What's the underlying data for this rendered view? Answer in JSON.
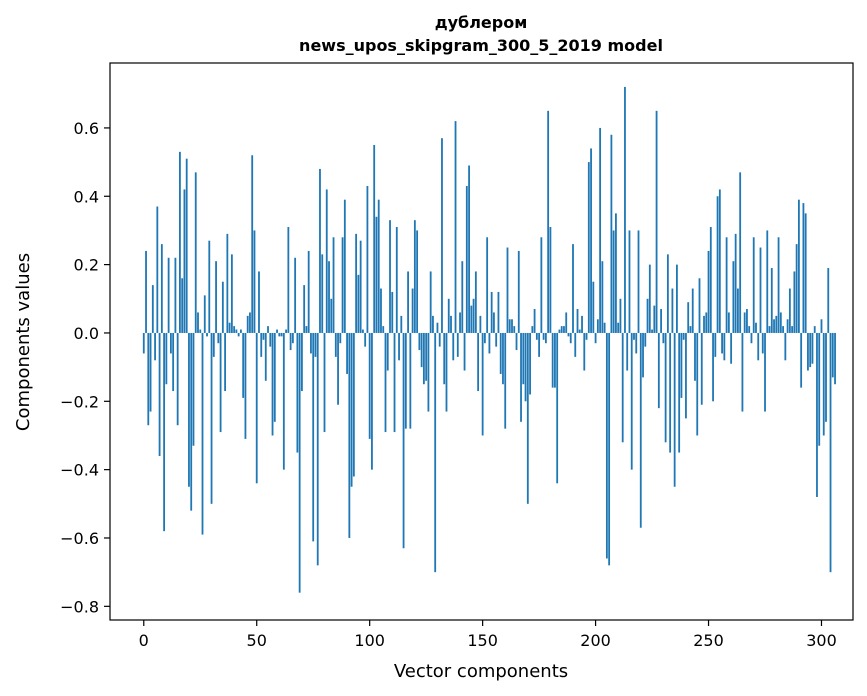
{
  "chart_data": {
    "type": "bar",
    "title_line1": "дублером",
    "title_line2": "news_upos_skipgram_300_5_2019 model",
    "xlabel": "Vector components",
    "ylabel": "Components values",
    "xlim": [
      -14.95,
      313.95
    ],
    "ylim": [
      -0.84,
      0.79
    ],
    "xticks": [
      0,
      50,
      100,
      150,
      200,
      250,
      300
    ],
    "xtick_labels": [
      "0",
      "50",
      "100",
      "150",
      "200",
      "250",
      "300"
    ],
    "yticks": [
      -0.8,
      -0.6,
      -0.4,
      -0.2,
      0.0,
      0.2,
      0.4,
      0.6
    ],
    "ytick_labels": [
      "−0.8",
      "−0.6",
      "−0.4",
      "−0.2",
      "0.0",
      "0.2",
      "0.4",
      "0.6"
    ],
    "bar_color": "#1f77b4",
    "grid": false,
    "values": [
      -0.06,
      0.24,
      -0.27,
      -0.23,
      0.14,
      -0.08,
      0.37,
      -0.36,
      0.26,
      -0.58,
      -0.15,
      0.22,
      -0.06,
      -0.17,
      0.22,
      -0.27,
      0.53,
      0.16,
      0.42,
      0.51,
      -0.45,
      -0.52,
      -0.33,
      0.47,
      0.06,
      0.01,
      -0.59,
      0.11,
      -0.01,
      0.27,
      -0.5,
      -0.07,
      0.21,
      -0.03,
      -0.29,
      0.15,
      -0.17,
      0.29,
      0.03,
      0.23,
      0.02,
      0.01,
      -0.01,
      0.01,
      -0.19,
      -0.31,
      0.05,
      0.06,
      0.52,
      0.3,
      -0.44,
      0.18,
      -0.07,
      -0.02,
      -0.14,
      0.02,
      -0.04,
      -0.3,
      -0.26,
      0.01,
      -0.01,
      -0.01,
      -0.4,
      0.01,
      0.31,
      -0.05,
      -0.03,
      0.22,
      -0.35,
      -0.76,
      -0.17,
      0.14,
      0.02,
      0.24,
      -0.06,
      -0.61,
      -0.07,
      -0.68,
      0.48,
      0.23,
      -0.29,
      0.42,
      0.21,
      0.1,
      0.28,
      -0.07,
      -0.21,
      -0.03,
      0.28,
      0.39,
      -0.12,
      -0.6,
      -0.45,
      -0.42,
      0.29,
      0.17,
      0.27,
      0.01,
      -0.04,
      0.43,
      -0.31,
      -0.4,
      0.55,
      0.34,
      0.39,
      0.13,
      0.02,
      -0.29,
      -0.11,
      0.33,
      0.12,
      -0.29,
      0.31,
      -0.08,
      0.05,
      -0.63,
      -0.28,
      0.18,
      -0.28,
      0.13,
      0.33,
      0.3,
      -0.05,
      -0.1,
      -0.15,
      -0.14,
      -0.23,
      0.18,
      0.05,
      -0.7,
      0.03,
      -0.04,
      0.57,
      -0.15,
      -0.23,
      0.1,
      0.05,
      -0.08,
      0.62,
      -0.07,
      0.06,
      0.21,
      -0.11,
      0.43,
      0.49,
      0.08,
      0.1,
      0.18,
      -0.17,
      0.05,
      -0.3,
      -0.03,
      0.28,
      -0.06,
      0.12,
      0.06,
      -0.04,
      0.12,
      -0.12,
      -0.15,
      -0.28,
      0.25,
      0.04,
      0.04,
      0.02,
      -0.05,
      0.24,
      -0.26,
      -0.15,
      -0.2,
      -0.5,
      -0.18,
      0.02,
      0.07,
      -0.02,
      -0.07,
      0.28,
      -0.02,
      -0.03,
      0.65,
      0.31,
      -0.16,
      -0.16,
      -0.44,
      0.01,
      0.02,
      0.02,
      0.06,
      -0.01,
      -0.03,
      0.26,
      -0.07,
      0.07,
      0.01,
      0.05,
      -0.11,
      -0.02,
      0.5,
      0.54,
      0.15,
      -0.03,
      0.04,
      0.6,
      0.21,
      0.03,
      -0.66,
      -0.68,
      0.58,
      0.3,
      0.35,
      0.03,
      0.1,
      -0.32,
      0.72,
      -0.11,
      0.3,
      -0.4,
      -0.02,
      -0.06,
      0.3,
      -0.57,
      -0.13,
      -0.04,
      0.1,
      0.2,
      0.01,
      0.08,
      0.65,
      -0.22,
      0.07,
      -0.03,
      -0.32,
      0.23,
      -0.35,
      0.13,
      -0.45,
      0.2,
      -0.35,
      -0.19,
      -0.02,
      -0.25,
      0.09,
      0.02,
      0.13,
      -0.14,
      -0.3,
      0.16,
      -0.21,
      0.05,
      0.06,
      0.24,
      0.31,
      -0.2,
      -0.07,
      0.4,
      0.42,
      -0.06,
      -0.08,
      0.28,
      0.06,
      -0.09,
      0.21,
      0.29,
      0.13,
      0.47,
      -0.23,
      0.06,
      0.07,
      0.02,
      -0.03,
      0.28,
      0.03,
      -0.08,
      0.25,
      -0.06,
      -0.23,
      0.3,
      0.02,
      0.19,
      0.04,
      0.05,
      0.28,
      0.06,
      0.02,
      -0.08,
      0.04,
      0.13,
      0.02,
      0.18,
      0.26,
      0.39,
      -0.16,
      0.38,
      0.35,
      -0.11,
      -0.1,
      -0.09,
      0.02,
      -0.48,
      -0.33,
      0.04,
      -0.3,
      -0.26,
      0.19,
      -0.7,
      -0.13,
      -0.15
    ]
  }
}
